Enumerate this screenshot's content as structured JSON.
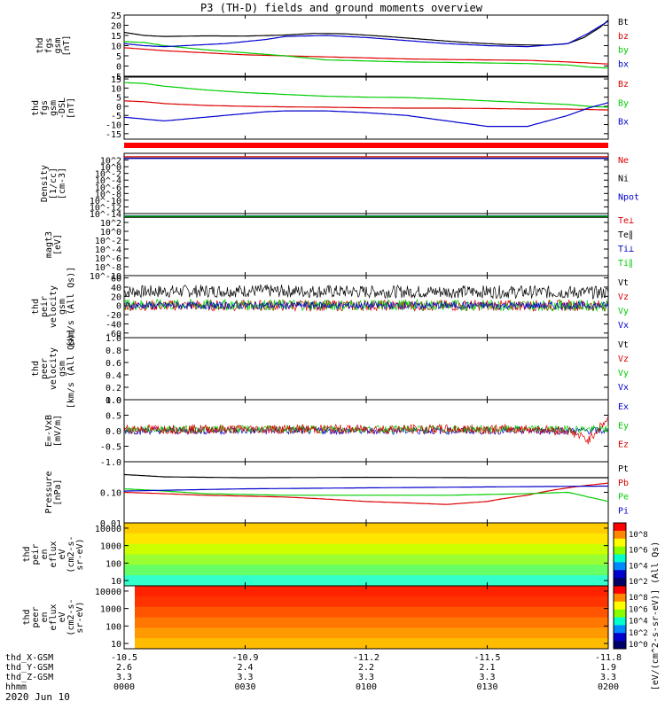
{
  "title": "P3 (TH-D) fields and ground moments overview",
  "date": "2020 Jun 10",
  "chart_data": {
    "type": "line",
    "x": {
      "ticks": [
        "0000",
        "0030",
        "0100",
        "0130",
        "0200"
      ],
      "ephemeris": [
        {
          "label": "thd_X-GSM",
          "values": [
            "-10.5",
            "-10.9",
            "-11.2",
            "-11.5",
            "-11.8"
          ]
        },
        {
          "label": "thd_Y-GSM",
          "values": [
            "2.6",
            "2.4",
            "2.2",
            "2.1",
            "1.9"
          ]
        },
        {
          "label": "thd_Z-GSM",
          "values": [
            "3.3",
            "3.3",
            "3.3",
            "3.3",
            "3.3"
          ]
        },
        {
          "label": "hhmm",
          "values": [
            "0000",
            "0030",
            "0100",
            "0130",
            "0200"
          ]
        }
      ]
    },
    "panels": [
      {
        "ylabel": [
          "thd",
          "fgs",
          "gsm",
          "[nT]"
        ],
        "ylim": [
          -5,
          25
        ],
        "yticks": [
          {
            "v": 25,
            "l": "25"
          },
          {
            "v": 20,
            "l": "20"
          },
          {
            "v": 15,
            "l": "15"
          },
          {
            "v": 10,
            "l": "10"
          },
          {
            "v": 5,
            "l": "5"
          },
          {
            "v": 0,
            "l": "0"
          },
          {
            "v": -5,
            "l": "-5"
          }
        ],
        "series": [
          {
            "name": "Bt",
            "color": "#000000",
            "x": [
              0,
              5,
              10,
              20,
              30,
              40,
              47,
              55,
              65,
              75,
              85,
              95,
              105,
              110,
              114,
              118,
              120
            ],
            "y": [
              16.5,
              15,
              14.5,
              14.8,
              14.7,
              15.2,
              16,
              15.8,
              14.5,
              13,
              11.5,
              10.5,
              10.2,
              11,
              14,
              19,
              22.5
            ]
          },
          {
            "name": "bz",
            "color": "#dd0000",
            "x": [
              0,
              10,
              20,
              30,
              40,
              50,
              60,
              70,
              80,
              90,
              100,
              110,
              120
            ],
            "y": [
              9,
              7.5,
              6.5,
              5.5,
              5,
              4.5,
              4,
              3.5,
              3.2,
              3,
              2.8,
              2,
              1
            ]
          },
          {
            "name": "by",
            "color": "#00cc00",
            "x": [
              0,
              5,
              10,
              20,
              30,
              40,
              45,
              50,
              60,
              70,
              80,
              90,
              100,
              110,
              115,
              120
            ],
            "y": [
              12,
              11.5,
              10,
              8,
              6.5,
              5,
              4,
              3,
              2.5,
              2,
              1.8,
              1.5,
              1.2,
              0.5,
              -0.5,
              -1
            ]
          },
          {
            "name": "bx",
            "color": "#0000cc",
            "x": [
              0,
              5,
              10,
              15,
              20,
              25,
              30,
              35,
              40,
              50,
              60,
              70,
              80,
              90,
              100,
              110,
              115,
              120
            ],
            "y": [
              11,
              10,
              9.5,
              10,
              10.5,
              11,
              12,
              13,
              14.5,
              15,
              14,
              12.5,
              11,
              10,
              9.5,
              11,
              16,
              22
            ]
          }
        ]
      },
      {
        "ylabel": [
          "thd",
          "fgs",
          "gsm",
          "-DSL",
          "[nT]"
        ],
        "ylim": [
          -18,
          16
        ],
        "yticks": [
          {
            "v": 15,
            "l": "15"
          },
          {
            "v": 10,
            "l": "10"
          },
          {
            "v": 5,
            "l": "5"
          },
          {
            "v": 0,
            "l": "0"
          },
          {
            "v": -5,
            "l": "-5"
          },
          {
            "v": -10,
            "l": "-10"
          },
          {
            "v": -15,
            "l": "-15"
          }
        ],
        "series": [
          {
            "name": "Bz",
            "color": "#dd0000",
            "x": [
              0,
              5,
              10,
              20,
              30,
              40,
              50,
              60,
              70,
              80,
              90,
              100,
              110,
              120
            ],
            "y": [
              3,
              2.5,
              1.5,
              0.5,
              0,
              -0.3,
              -0.5,
              -0.8,
              -1,
              -1,
              -1.2,
              -1.5,
              -1.5,
              -2
            ]
          },
          {
            "name": "By",
            "color": "#00cc00",
            "x": [
              0,
              5,
              10,
              20,
              30,
              40,
              50,
              60,
              70,
              80,
              90,
              100,
              110,
              115,
              120
            ],
            "y": [
              13,
              12.5,
              11,
              9,
              7.5,
              6.5,
              5.5,
              5,
              4.8,
              4,
              3,
              2,
              1,
              0,
              -0.5
            ]
          },
          {
            "name": "Bx",
            "color": "#0000cc",
            "x": [
              0,
              5,
              10,
              15,
              20,
              25,
              30,
              35,
              40,
              50,
              60,
              70,
              80,
              90,
              100,
              110,
              115,
              120
            ],
            "y": [
              -6,
              -7,
              -8,
              -7,
              -6,
              -5,
              -4,
              -3,
              -2.5,
              -2.5,
              -3.5,
              -5,
              -8,
              -11,
              -11,
              -5,
              -1,
              2
            ]
          }
        ]
      },
      {
        "ylabel": [
          "Density",
          "[1/cc]",
          "[cm-3]"
        ],
        "log": true,
        "ylim": [
          1e-14,
          10000.0
        ],
        "yticks": [
          {
            "v": 100,
            "l": "10^2"
          },
          {
            "v": 1,
            "l": "10^0"
          },
          {
            "v": 0.01,
            "l": "10^-2"
          },
          {
            "v": 0.0001,
            "l": "10^-4"
          },
          {
            "v": 1e-06,
            "l": "10^-6"
          },
          {
            "v": 1e-08,
            "l": "10^-8"
          },
          {
            "v": 1e-10,
            "l": "10^-10"
          },
          {
            "v": 1e-12,
            "l": "10^-12"
          },
          {
            "v": 1e-14,
            "l": "10^-14"
          }
        ],
        "series": [
          {
            "name": "Ne",
            "color": "#dd0000",
            "x": [
              0,
              120
            ],
            "y": [
              1000,
              1000
            ]
          },
          {
            "name": "Ni",
            "color": "#000000",
            "x": [
              0,
              120
            ],
            "y": [
              400,
              400
            ]
          },
          {
            "name": "Npot",
            "color": "#0000cc",
            "x": [
              0,
              120
            ],
            "y": [
              300,
              300
            ]
          }
        ]
      },
      {
        "ylabel": [
          "magt3",
          "[eV]"
        ],
        "log": true,
        "ylim": [
          1e-10,
          10000.0
        ],
        "yticks": [
          {
            "v": 100,
            "l": "10^2"
          },
          {
            "v": 1,
            "l": "10^0"
          },
          {
            "v": 0.01,
            "l": "10^-2"
          },
          {
            "v": 0.0001,
            "l": "10^-4"
          },
          {
            "v": 1e-06,
            "l": "10^-6"
          },
          {
            "v": 1e-08,
            "l": "10^-8"
          },
          {
            "v": 1e-10,
            "l": "10^-10"
          }
        ],
        "series": [
          {
            "name": "Te⊥",
            "color": "#dd0000",
            "x": [
              0,
              120
            ],
            "y": [
              2000,
              2000
            ]
          },
          {
            "name": "Te∥",
            "color": "#000000",
            "x": [
              0,
              120
            ],
            "y": [
              1500,
              1500
            ]
          },
          {
            "name": "Ti⊥",
            "color": "#0000cc",
            "x": [
              0,
              120
            ],
            "y": [
              3000,
              3000
            ]
          },
          {
            "name": "Ti∥",
            "color": "#00cc00",
            "x": [
              0,
              120
            ],
            "y": [
              2500,
              2500
            ]
          }
        ]
      },
      {
        "ylabel": [
          "thd",
          "peir",
          "velocity",
          "gsm",
          "[km/s (All Qs)]"
        ],
        "ylim": [
          -70,
          65
        ],
        "yticks": [
          {
            "v": 60,
            "l": "60"
          },
          {
            "v": 40,
            "l": "40"
          },
          {
            "v": 20,
            "l": "20"
          },
          {
            "v": 0,
            "l": "0"
          },
          {
            "v": -20,
            "l": "-20"
          },
          {
            "v": -40,
            "l": "-40"
          },
          {
            "v": -60,
            "l": "-60"
          }
        ],
        "series": [
          {
            "name": "Vt",
            "color": "#000000",
            "noise": 14,
            "x": [
              0,
              30,
              60,
              90,
              120
            ],
            "y": [
              30,
              32,
              30,
              30,
              28
            ]
          },
          {
            "name": "Vz",
            "color": "#dd0000",
            "noise": 12,
            "x": [
              0,
              120
            ],
            "y": [
              0,
              0
            ]
          },
          {
            "name": "Vy",
            "color": "#00cc00",
            "noise": 12,
            "x": [
              0,
              120
            ],
            "y": [
              2,
              0
            ]
          },
          {
            "name": "Vx",
            "color": "#0000cc",
            "noise": 8,
            "x": [
              0,
              120
            ],
            "y": [
              0,
              0
            ]
          }
        ]
      },
      {
        "ylabel": [
          "thd",
          "peer",
          "velocity",
          "gsm",
          "[km/s (All Qs)]"
        ],
        "ylim": [
          0,
          1
        ],
        "yticks": [
          {
            "v": 1,
            "l": "1.0"
          },
          {
            "v": 0.8,
            "l": "0.8"
          },
          {
            "v": 0.6,
            "l": "0.6"
          },
          {
            "v": 0.4,
            "l": "0.4"
          },
          {
            "v": 0.2,
            "l": "0.2"
          },
          {
            "v": 0,
            "l": "0.0"
          }
        ],
        "series": [
          {
            "name": "Vt",
            "color": "#000000",
            "x": [],
            "y": []
          },
          {
            "name": "Vz",
            "color": "#dd0000",
            "x": [],
            "y": []
          },
          {
            "name": "Vy",
            "color": "#00cc00",
            "x": [],
            "y": []
          },
          {
            "name": "Vx",
            "color": "#0000cc",
            "x": [],
            "y": []
          }
        ]
      },
      {
        "ylabel": [
          "E=-VxB",
          "[mV/m]"
        ],
        "ylim": [
          -1,
          1
        ],
        "yticks": [
          {
            "v": 1,
            "l": "1.0"
          },
          {
            "v": 0.5,
            "l": "0.5"
          },
          {
            "v": 0,
            "l": "0.0"
          },
          {
            "v": -0.5,
            "l": "-0.5"
          },
          {
            "v": -1,
            "l": "-1.0"
          }
        ],
        "series": [
          {
            "name": "Ex",
            "color": "#0000cc",
            "noise": 0.12,
            "x": [
              0,
              120
            ],
            "y": [
              0,
              0
            ]
          },
          {
            "name": "Ey",
            "color": "#00cc00",
            "noise": 0.12,
            "x": [
              0,
              120
            ],
            "y": [
              0.05,
              0.05
            ]
          },
          {
            "name": "Ez",
            "color": "#dd0000",
            "noise": 0.15,
            "x": [
              0,
              100,
              110,
              115,
              120
            ],
            "y": [
              0.05,
              0.05,
              0,
              -0.3,
              0.4
            ]
          }
        ]
      },
      {
        "ylabel": [
          "Pressure",
          "[nPa]"
        ],
        "log": true,
        "ylim": [
          0.01,
          1
        ],
        "yticks": [
          {
            "v": 0.1,
            "l": "0.10"
          },
          {
            "v": 0.01,
            "l": "0.01"
          }
        ],
        "series": [
          {
            "name": "Pt",
            "color": "#000000",
            "x": [
              0,
              10,
              30,
              60,
              90,
              120
            ],
            "y": [
              0.38,
              0.32,
              0.3,
              0.31,
              0.3,
              0.3
            ]
          },
          {
            "name": "Pb",
            "color": "#dd0000",
            "x": [
              0,
              10,
              20,
              40,
              60,
              80,
              90,
              100,
              110,
              120
            ],
            "y": [
              0.1,
              0.09,
              0.08,
              0.07,
              0.05,
              0.04,
              0.05,
              0.08,
              0.14,
              0.2
            ]
          },
          {
            "name": "Pe",
            "color": "#00cc00",
            "x": [
              0,
              10,
              20,
              40,
              60,
              80,
              100,
              110,
              115,
              120
            ],
            "y": [
              0.13,
              0.11,
              0.09,
              0.08,
              0.08,
              0.08,
              0.09,
              0.1,
              0.07,
              0.05
            ]
          },
          {
            "name": "Pi",
            "color": "#0000cc",
            "x": [
              0,
              30,
              60,
              90,
              120
            ],
            "y": [
              0.11,
              0.13,
              0.14,
              0.15,
              0.16
            ]
          }
        ]
      },
      {
        "type": "heatmap",
        "ylabel": [
          "thd",
          "peir",
          "en",
          "eflux",
          "eV",
          "(cm2-s-",
          "sr-eV)"
        ],
        "log": true,
        "ylim": [
          5,
          20000
        ],
        "yticks": [
          {
            "v": 10000,
            "l": "10000"
          },
          {
            "v": 1000,
            "l": "1000"
          },
          {
            "v": 100,
            "l": "100"
          },
          {
            "v": 10,
            "l": "10"
          }
        ],
        "colorbar": {
          "ticks": [
            "10^8",
            "10^6",
            "10^4",
            "10^2"
          ]
        }
      },
      {
        "type": "heatmap",
        "ylabel": [
          "thd",
          "peer",
          "en",
          "eflux",
          "eV",
          "(cm2-s-",
          "sr-eV)"
        ],
        "log": true,
        "ylim": [
          5,
          20000
        ],
        "yticks": [
          {
            "v": 10000,
            "l": "10000"
          },
          {
            "v": 1000,
            "l": "1000"
          },
          {
            "v": 100,
            "l": "100"
          },
          {
            "v": 10,
            "l": "10"
          }
        ],
        "colorbar": {
          "ticks": [
            "10^8",
            "10^6",
            "10^4",
            "10^2",
            "10^0"
          ]
        }
      }
    ],
    "colorbar_label": "[eV/(cm^2-s-sr-eV)] (All Qs)"
  }
}
